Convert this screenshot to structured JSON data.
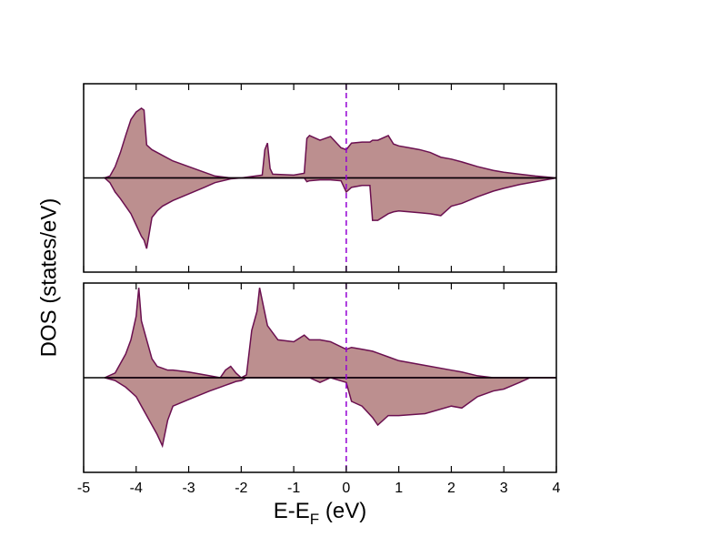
{
  "chart_data": [
    {
      "type": "area",
      "ylabel": "DOS (states/eV)",
      "xlim": [
        -5,
        4
      ],
      "ylim": [
        -1,
        1
      ],
      "vline": 0,
      "vline_color": "#9400d3",
      "hline": 0,
      "x": [
        -4.6,
        -4.5,
        -4.4,
        -4.3,
        -4.2,
        -4.1,
        -4.0,
        -3.9,
        -3.85,
        -3.8,
        -3.7,
        -3.6,
        -3.5,
        -3.3,
        -3.0,
        -2.7,
        -2.5,
        -2.2,
        -2.0,
        -1.6,
        -1.55,
        -1.5,
        -1.45,
        -1.4,
        -1.0,
        -0.8,
        -0.75,
        -0.7,
        -0.5,
        -0.3,
        -0.1,
        0,
        0.1,
        0.3,
        0.45,
        0.5,
        0.6,
        0.8,
        0.9,
        1.0,
        1.2,
        1.4,
        1.6,
        1.8,
        2.0,
        2.2,
        2.5,
        2.8,
        3.0,
        3.3,
        3.6,
        4.0
      ],
      "series": [
        {
          "color": "#bc8f8f",
          "values": [
            0,
            0.02,
            0.12,
            0.27,
            0.45,
            0.62,
            0.7,
            0.74,
            0.72,
            0.35,
            0.3,
            0.27,
            0.24,
            0.18,
            0.12,
            0.06,
            0.02,
            0,
            0,
            0.03,
            0.3,
            0.37,
            0.1,
            0.04,
            0.03,
            0.05,
            0.42,
            0.45,
            0.4,
            0.44,
            0.32,
            0.3,
            0.37,
            0.38,
            0.38,
            0.4,
            0.4,
            0.45,
            0.36,
            0.34,
            0.32,
            0.3,
            0.27,
            0.22,
            0.2,
            0.17,
            0.12,
            0.08,
            0.06,
            0.04,
            0.02,
            0
          ]
        },
        {
          "color": "#bc8f8f",
          "values": [
            0,
            -0.05,
            -0.15,
            -0.22,
            -0.3,
            -0.38,
            -0.5,
            -0.62,
            -0.66,
            -0.75,
            -0.42,
            -0.35,
            -0.3,
            -0.24,
            -0.17,
            -0.1,
            -0.05,
            -0.01,
            0,
            0,
            0,
            0,
            0,
            0,
            0,
            0,
            -0.04,
            -0.03,
            -0.02,
            -0.02,
            -0.03,
            -0.15,
            -0.1,
            -0.08,
            -0.08,
            -0.45,
            -0.45,
            -0.38,
            -0.36,
            -0.35,
            -0.36,
            -0.37,
            -0.38,
            -0.4,
            -0.3,
            -0.27,
            -0.2,
            -0.14,
            -0.11,
            -0.07,
            -0.04,
            0
          ]
        }
      ]
    },
    {
      "type": "area",
      "xlabel": [
        "E-E",
        "F",
        " (eV)"
      ],
      "xlim": [
        -5,
        4
      ],
      "ylim": [
        -1,
        1
      ],
      "xticks": [
        -5,
        -4,
        -3,
        -2,
        -1,
        0,
        1,
        2,
        3,
        4
      ],
      "vline": 0,
      "vline_color": "#9400d3",
      "hline": 0,
      "x": [
        -4.6,
        -4.4,
        -4.2,
        -4.1,
        -4.0,
        -3.95,
        -3.9,
        -3.8,
        -3.7,
        -3.6,
        -3.5,
        -3.4,
        -3.3,
        -3.0,
        -2.6,
        -2.4,
        -2.3,
        -2.2,
        -2.1,
        -2.0,
        -1.9,
        -1.8,
        -1.7,
        -1.65,
        -1.5,
        -1.3,
        -1.0,
        -0.8,
        -0.7,
        -0.5,
        -0.3,
        0,
        0.1,
        0.3,
        0.5,
        0.6,
        0.8,
        1.0,
        1.5,
        2.0,
        2.2,
        2.5,
        2.8,
        3.0,
        3.3,
        3.5,
        4.0
      ],
      "series": [
        {
          "color": "#bc8f8f",
          "values": [
            0,
            0.05,
            0.25,
            0.4,
            0.65,
            0.95,
            0.6,
            0.4,
            0.2,
            0.12,
            0.1,
            0.08,
            0.08,
            0.06,
            0.02,
            0,
            0.08,
            0.12,
            0.05,
            0,
            0.03,
            0.5,
            0.7,
            0.95,
            0.55,
            0.4,
            0.38,
            0.45,
            0.4,
            0.4,
            0.38,
            0.3,
            0.32,
            0.3,
            0.28,
            0.26,
            0.22,
            0.18,
            0.13,
            0.08,
            0.06,
            0.02,
            0,
            0,
            0,
            0,
            0
          ]
        },
        {
          "color": "#bc8f8f",
          "values": [
            0,
            -0.03,
            -0.1,
            -0.15,
            -0.2,
            -0.25,
            -0.3,
            -0.4,
            -0.5,
            -0.6,
            -0.72,
            -0.45,
            -0.3,
            -0.23,
            -0.14,
            -0.1,
            -0.08,
            -0.06,
            -0.04,
            -0.03,
            0,
            0,
            0,
            0,
            0,
            0,
            0,
            0,
            0,
            -0.05,
            0,
            -0.05,
            -0.25,
            -0.3,
            -0.42,
            -0.5,
            -0.4,
            -0.4,
            -0.38,
            -0.3,
            -0.32,
            -0.2,
            -0.14,
            -0.12,
            -0.05,
            0,
            0
          ]
        }
      ]
    }
  ]
}
